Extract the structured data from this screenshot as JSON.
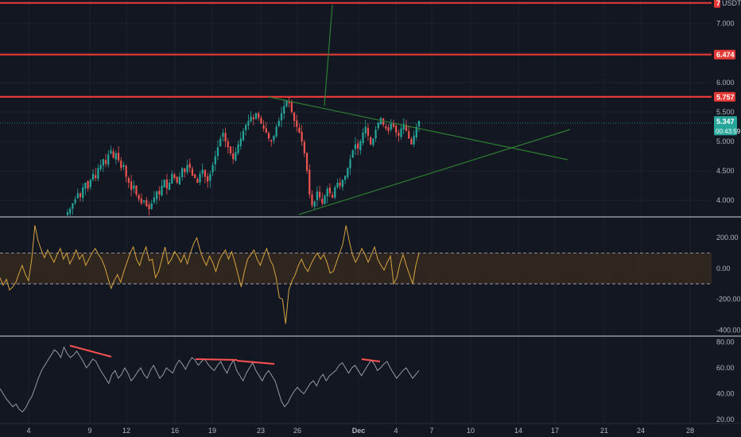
{
  "chart_data": [
    {
      "type": "candlestick",
      "pane": "price",
      "currency_label": "USDT",
      "y_ticks": [
        4.0,
        4.5,
        5.0,
        5.5,
        6.0,
        6.5,
        7.0
      ],
      "y_tick_labels": [
        "4.000",
        "4.500",
        "5.000",
        "5.500",
        "6.000",
        "",
        "7.000"
      ],
      "ylim": [
        3.72,
        7.4
      ],
      "grid": true,
      "horizontal_levels": [
        {
          "value": 7.35,
          "label": "7",
          "color": "#e53935"
        },
        {
          "value": 6.474,
          "label": "6.474",
          "color": "#e53935"
        },
        {
          "value": 5.757,
          "label": "5.757",
          "color": "#e53935"
        }
      ],
      "last_price": {
        "value": 5.347,
        "label": "5.347",
        "countdown": "00:43:59",
        "color": "#26a69a"
      },
      "candle_colors": {
        "up": "#26a69a",
        "down": "#ef5350"
      },
      "close_series": [
        3.8,
        3.86,
        3.95,
        4.02,
        4.12,
        4.06,
        4.22,
        4.3,
        4.2,
        4.35,
        4.45,
        4.38,
        4.55,
        4.6,
        4.7,
        4.62,
        4.78,
        4.85,
        4.72,
        4.8,
        4.68,
        4.55,
        4.6,
        4.4,
        4.3,
        4.18,
        4.25,
        4.1,
        4.02,
        3.95,
        4.0,
        3.9,
        3.85,
        3.95,
        4.05,
        4.15,
        4.1,
        4.25,
        4.35,
        4.2,
        4.3,
        4.45,
        4.38,
        4.3,
        4.4,
        4.55,
        4.48,
        4.6,
        4.55,
        4.42,
        4.38,
        4.3,
        4.45,
        4.52,
        4.4,
        4.32,
        4.45,
        4.6,
        4.75,
        4.9,
        5.05,
        5.15,
        5.0,
        4.9,
        4.8,
        4.7,
        4.82,
        4.95,
        5.05,
        5.18,
        5.28,
        5.35,
        5.42,
        5.38,
        5.48,
        5.4,
        5.3,
        5.22,
        5.15,
        5.05,
        5.0,
        5.1,
        5.25,
        5.35,
        5.48,
        5.6,
        5.7,
        5.65,
        5.5,
        5.35,
        5.25,
        5.15,
        5.0,
        4.8,
        4.5,
        4.1,
        3.92,
        3.98,
        4.15,
        4.05,
        3.95,
        4.08,
        4.2,
        4.12,
        4.05,
        4.22,
        4.3,
        4.25,
        4.35,
        4.42,
        4.55,
        4.7,
        4.85,
        4.95,
        4.88,
        5.0,
        5.15,
        5.25,
        5.1,
        4.95,
        5.05,
        5.2,
        5.32,
        5.4,
        5.28,
        5.22,
        5.18,
        5.3,
        5.25,
        5.15,
        5.1,
        5.22,
        5.3,
        5.18,
        5.05,
        4.95,
        5.1,
        5.25,
        5.35
      ]
    },
    {
      "type": "line",
      "pane": "oscillator",
      "y_ticks": [
        200,
        0,
        -200,
        -400
      ],
      "y_tick_labels": [
        "200.00",
        "0.00",
        "-200.00",
        "-400.00"
      ],
      "ylim": [
        -440,
        330
      ],
      "bands": [
        100,
        -100
      ],
      "line_color": "#d4a240",
      "values": [
        -60,
        -110,
        -70,
        -140,
        -120,
        -90,
        -30,
        20,
        -40,
        -80,
        60,
        280,
        180,
        120,
        70,
        120,
        80,
        40,
        90,
        130,
        60,
        100,
        30,
        70,
        120,
        60,
        90,
        20,
        60,
        100,
        130,
        90,
        60,
        10,
        -60,
        -130,
        -80,
        -40,
        -90,
        -20,
        40,
        100,
        140,
        60,
        20,
        90,
        140,
        50,
        60,
        -60,
        -20,
        60,
        140,
        30,
        60,
        110,
        80,
        40,
        90,
        30,
        100,
        160,
        200,
        120,
        60,
        20,
        80,
        40,
        -20,
        50,
        90,
        120,
        60,
        110,
        40,
        -40,
        -120,
        -20,
        60,
        90,
        120,
        60,
        20,
        80,
        130,
        60,
        20,
        -60,
        -190,
        -200,
        -360,
        -140,
        -80,
        -40,
        20,
        60,
        10,
        -20,
        30,
        70,
        100,
        60,
        90,
        40,
        -30,
        -20,
        40,
        100,
        160,
        280,
        180,
        90,
        40,
        80,
        130,
        90,
        40,
        90,
        140,
        60,
        20,
        -10,
        40,
        80,
        -100,
        -60,
        30,
        90,
        20,
        -40,
        -100,
        20,
        100
      ]
    },
    {
      "type": "line",
      "pane": "rsi",
      "y_ticks": [
        80,
        60,
        40,
        20
      ],
      "y_tick_labels": [
        "80.00",
        "60.00",
        "40.00",
        "20.00"
      ],
      "ylim": [
        17,
        84
      ],
      "line_color": "#9598a1",
      "divergence_color": "#ff5252",
      "values": [
        44,
        40,
        36,
        33,
        30,
        32,
        28,
        26,
        29,
        34,
        38,
        45,
        52,
        58,
        62,
        66,
        70,
        74,
        72,
        68,
        76,
        71,
        68,
        70,
        73,
        69,
        65,
        60,
        63,
        67,
        65,
        60,
        56,
        52,
        48,
        55,
        58,
        52,
        55,
        60,
        56,
        50,
        53,
        57,
        60,
        55,
        52,
        58,
        62,
        57,
        52,
        55,
        60,
        58,
        56,
        62,
        66,
        63,
        59,
        64,
        68,
        66,
        62,
        65,
        67,
        63,
        60,
        58,
        62,
        65,
        60,
        56,
        62,
        66,
        58,
        54,
        50,
        56,
        60,
        64,
        58,
        54,
        50,
        55,
        58,
        54,
        50,
        42,
        34,
        30,
        33,
        38,
        42,
        45,
        42,
        40,
        44,
        48,
        50,
        46,
        52,
        55,
        50,
        54,
        56,
        58,
        62,
        64,
        60,
        56,
        60,
        62,
        58,
        54,
        58,
        62,
        66,
        63,
        58,
        60,
        63,
        65,
        60,
        56,
        52,
        55,
        58,
        60,
        56,
        52,
        55,
        58
      ]
    }
  ],
  "x_axis_labels": [
    "4",
    "9",
    "12",
    "16",
    "19",
    "23",
    "26",
    "Dec",
    "4",
    "7",
    "10",
    "14",
    "17",
    "21",
    "24",
    "28"
  ]
}
